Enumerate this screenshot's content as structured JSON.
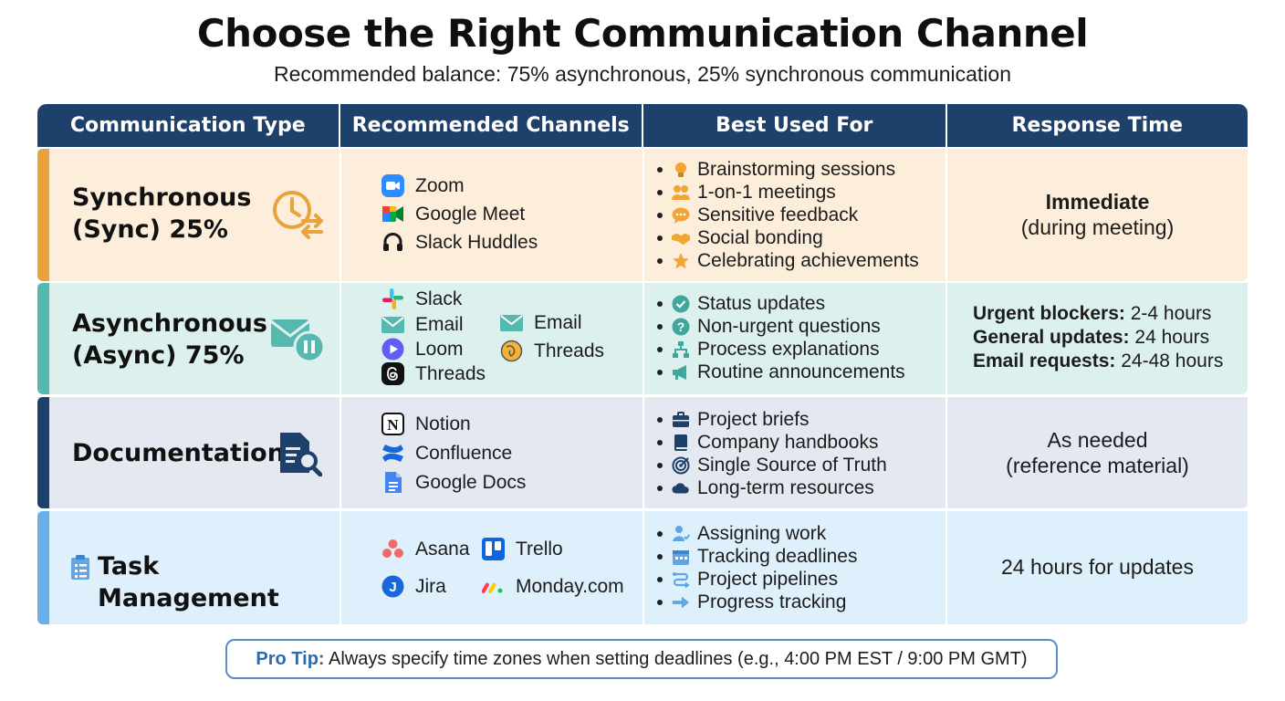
{
  "title": "Choose the Right Communication Channel",
  "subtitle": "Recommended balance: 75% asynchronous, 25% synchronous communication",
  "table": {
    "headers": [
      "Communication Type",
      "Recommended Channels",
      "Best Used For",
      "Response Time"
    ],
    "rows": [
      {
        "type_line1": "Synchronous",
        "type_line2": "(Sync) 25%",
        "type_icon": "clock-swap-icon",
        "accent": "#e8a33d",
        "background": "#fdeedb",
        "channels": [
          {
            "label": "Zoom",
            "icon": "zoom-icon"
          },
          {
            "label": "Google Meet",
            "icon": "google-meet-icon"
          },
          {
            "label": "Slack Huddles",
            "icon": "headphones-icon"
          }
        ],
        "best_for": [
          {
            "label": "Brainstorming sessions",
            "icon": "lightbulb-icon"
          },
          {
            "label": "1-on-1 meetings",
            "icon": "people-icon"
          },
          {
            "label": "Sensitive feedback",
            "icon": "speech-bubble-icon"
          },
          {
            "label": "Social bonding",
            "icon": "handshake-icon"
          },
          {
            "label": "Celebrating achievements",
            "icon": "star-icon"
          }
        ],
        "response_main": "Immediate",
        "response_sub": "(during meeting)"
      },
      {
        "type_line1": "Asynchronous",
        "type_line2": "(Async) 75%",
        "type_icon": "envelope-pause-icon",
        "accent": "#56b9b0",
        "background": "#dcf1ee",
        "channels": [
          {
            "label": "Slack",
            "icon": "slack-icon"
          },
          {
            "label": "Email",
            "icon": "email-icon"
          },
          {
            "label": "Email",
            "icon": "email-icon"
          },
          {
            "label": "Loom",
            "icon": "loom-icon"
          },
          {
            "label": "Threads",
            "icon": "threads-globe-icon"
          },
          {
            "label": "Threads",
            "icon": "threads-icon"
          }
        ],
        "best_for": [
          {
            "label": "Status updates",
            "icon": "check-circle-icon"
          },
          {
            "label": "Non-urgent questions",
            "icon": "question-circle-icon"
          },
          {
            "label": "Process explanations",
            "icon": "flowchart-icon"
          },
          {
            "label": "Routine announcements",
            "icon": "megaphone-icon"
          }
        ],
        "response_items": [
          {
            "label": "Urgent blockers:",
            "value": "2-4 hours"
          },
          {
            "label": "General updates:",
            "value": "24 hours"
          },
          {
            "label": "Email requests:",
            "value": "24-48 hours"
          }
        ]
      },
      {
        "type_line1": "Documentation",
        "type_icon": "document-search-icon",
        "accent": "#1e416b",
        "background": "#e3e8f1",
        "channels": [
          {
            "label": "Notion",
            "icon": "notion-icon"
          },
          {
            "label": "Confluence",
            "icon": "confluence-icon"
          },
          {
            "label": "Google Docs",
            "icon": "google-docs-icon"
          }
        ],
        "best_for": [
          {
            "label": "Project briefs",
            "icon": "briefcase-icon"
          },
          {
            "label": "Company handbooks",
            "icon": "book-icon"
          },
          {
            "label": "Single Source of Truth",
            "icon": "target-icon"
          },
          {
            "label": "Long-term resources",
            "icon": "cloud-icon"
          }
        ],
        "response_main": "As needed",
        "response_sub": "(reference material)"
      },
      {
        "type_line1": "Task Management",
        "type_icon": "clipboard-icon",
        "accent": "#6aaee8",
        "background": "#def0fc",
        "channels": [
          {
            "label": "Asana",
            "icon": "asana-icon"
          },
          {
            "label": "Trello",
            "icon": "trello-icon"
          },
          {
            "label": "Jira",
            "icon": "jira-icon"
          },
          {
            "label": "Monday.com",
            "icon": "monday-icon"
          }
        ],
        "best_for": [
          {
            "label": "Assigning work",
            "icon": "assign-person-icon"
          },
          {
            "label": "Tracking deadlines",
            "icon": "calendar-icon"
          },
          {
            "label": "Project pipelines",
            "icon": "pipeline-icon"
          },
          {
            "label": "Progress tracking",
            "icon": "arrow-right-icon"
          }
        ],
        "response_main": "24 hours for updates"
      }
    ]
  },
  "tip": {
    "label": "Pro Tip:",
    "text": " Always specify time zones when setting deadlines (e.g., 4:00 PM EST / 9:00 PM GMT)"
  }
}
